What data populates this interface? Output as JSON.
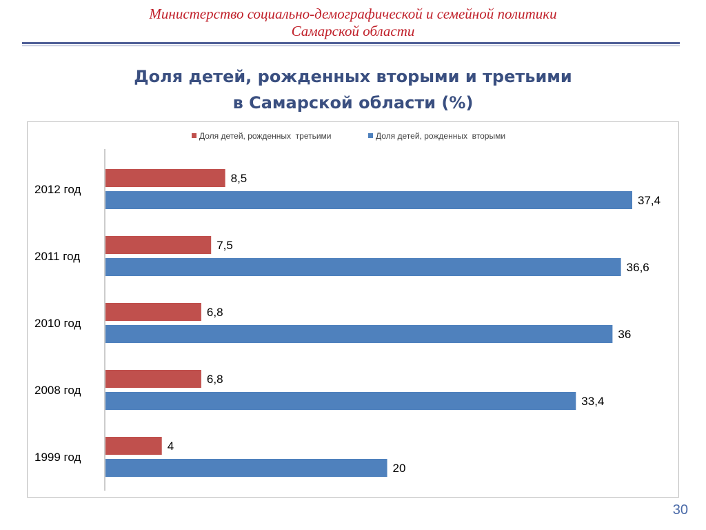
{
  "header": {
    "ministry_line1": "Министерство социально-демографической и семейной политики",
    "ministry_line2": "Самарской области"
  },
  "slide": {
    "title_line1": "Доля детей, рожденных вторыми и третьими",
    "title_line2": "в Самарской области (%)",
    "page_number": "30"
  },
  "colors": {
    "third_series": "#c0504d",
    "second_series": "#4f81bd",
    "title": "#3a4f80",
    "ministry": "#c0202a"
  },
  "chart_data": {
    "type": "bar",
    "orientation": "horizontal",
    "categories": [
      "2012 год",
      "2011 год",
      "2010 год",
      "2008 год",
      "1999 год"
    ],
    "series": [
      {
        "name": "Доля детей, рожденных  третьими",
        "values": [
          8.5,
          7.5,
          6.8,
          6.8,
          4
        ],
        "labels": [
          "8,5",
          "7,5",
          "6,8",
          "6,8",
          "4"
        ],
        "color": "#c0504d"
      },
      {
        "name": "Доля детей, рожденных  вторыми",
        "values": [
          37.4,
          36.6,
          36,
          33.4,
          20
        ],
        "labels": [
          "37,4",
          "36,6",
          "36",
          "33,4",
          "20"
        ],
        "color": "#4f81bd"
      }
    ],
    "xlim": [
      0,
      40
    ],
    "grid": false,
    "legend": "top-center",
    "data_labels": true
  }
}
